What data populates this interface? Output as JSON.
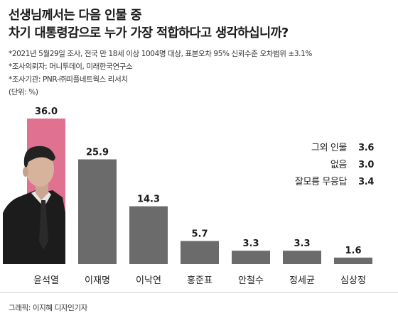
{
  "header": {
    "title_line1": "선생님께서는 다음 인물 중",
    "title_line2": "차기 대통령감으로 누가 가장 적합하다고 생각하십니까?",
    "note1": "*2021년 5월29일 조사, 전국 만 18세 이상 1004명 대상, 표본오차 95% 신뢰수준 오차범위 ±3.1%",
    "note2": "*조사의뢰자: 머니투데이, 미래한국연구소",
    "note3": "*조사기관: PNR-㈜피플네트웍스 리서치",
    "unit": "(단위: %)"
  },
  "chart_data": {
    "type": "bar",
    "categories": [
      "윤석열",
      "이재명",
      "이낙연",
      "홍준표",
      "안철수",
      "정세균",
      "심상정"
    ],
    "values": [
      36.0,
      25.9,
      14.3,
      5.7,
      3.3,
      3.3,
      1.6
    ],
    "value_labels": [
      "36.0",
      "25.9",
      "14.3",
      "5.7",
      "3.3",
      "3.3",
      "1.6"
    ],
    "ylim": [
      0,
      36
    ],
    "grid": false,
    "colors": {
      "highlight": "#e07190",
      "default": "#6b6b6b"
    },
    "highlight_index": 0,
    "others": [
      {
        "label": "그외 인물",
        "value": "3.6"
      },
      {
        "label": "없음",
        "value": "3.0"
      },
      {
        "label": "잘모름 무응답",
        "value": "3.4"
      }
    ]
  },
  "footer": {
    "credit": "그래픽: 이지혜 디자인기자"
  }
}
